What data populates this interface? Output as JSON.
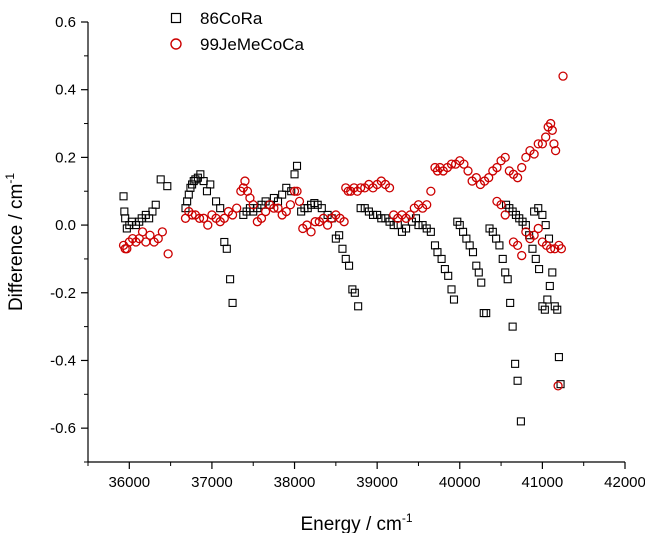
{
  "chart_data": {
    "type": "scatter",
    "title": "",
    "xlabel": "Energy / cm",
    "xlabel_sup": "-1",
    "ylabel": "Difference / cm",
    "ylabel_sup": "-1",
    "xlim": [
      35500,
      42000
    ],
    "ylim": [
      -0.7,
      0.6
    ],
    "xticks": [
      36000,
      37000,
      38000,
      39000,
      40000,
      41000,
      42000
    ],
    "yticks": [
      -0.6,
      -0.4,
      -0.2,
      0.0,
      0.2,
      0.4,
      0.6
    ],
    "xtick_labels": [
      "36000",
      "37000",
      "38000",
      "39000",
      "40000",
      "41000",
      "42000"
    ],
    "ytick_labels": [
      "-0.6",
      "-0.4",
      "-0.2",
      "0.0",
      "0.2",
      "0.4",
      "0.6"
    ],
    "grid": false,
    "legend_position": "top-left",
    "series": [
      {
        "name": "86CoRa",
        "marker": "square",
        "color": "#000000",
        "points": [
          [
            35930,
            0.085
          ],
          [
            35940,
            0.04
          ],
          [
            35950,
            0.02
          ],
          [
            35970,
            -0.01
          ],
          [
            36000,
            0.0
          ],
          [
            36030,
            0.01
          ],
          [
            36080,
            0.0
          ],
          [
            36120,
            0.01
          ],
          [
            36150,
            0.02
          ],
          [
            36200,
            0.03
          ],
          [
            36240,
            0.02
          ],
          [
            36280,
            0.04
          ],
          [
            36320,
            0.06
          ],
          [
            36380,
            0.135
          ],
          [
            36460,
            0.115
          ],
          [
            36680,
            0.05
          ],
          [
            36700,
            0.07
          ],
          [
            36720,
            0.09
          ],
          [
            36740,
            0.11
          ],
          [
            36760,
            0.12
          ],
          [
            36780,
            0.13
          ],
          [
            36800,
            0.135
          ],
          [
            36830,
            0.14
          ],
          [
            36860,
            0.15
          ],
          [
            36900,
            0.13
          ],
          [
            36940,
            0.1
          ],
          [
            36980,
            0.12
          ],
          [
            37050,
            0.07
          ],
          [
            37100,
            0.05
          ],
          [
            37150,
            -0.05
          ],
          [
            37180,
            -0.07
          ],
          [
            37220,
            -0.16
          ],
          [
            37250,
            -0.23
          ],
          [
            37380,
            0.03
          ],
          [
            37420,
            0.04
          ],
          [
            37460,
            0.05
          ],
          [
            37500,
            0.04
          ],
          [
            37550,
            0.05
          ],
          [
            37600,
            0.06
          ],
          [
            37650,
            0.07
          ],
          [
            37700,
            0.06
          ],
          [
            37750,
            0.08
          ],
          [
            37800,
            0.07
          ],
          [
            37850,
            0.09
          ],
          [
            37900,
            0.11
          ],
          [
            37960,
            0.1
          ],
          [
            38000,
            0.15
          ],
          [
            38030,
            0.175
          ],
          [
            38080,
            0.04
          ],
          [
            38120,
            0.05
          ],
          [
            38160,
            0.05
          ],
          [
            38200,
            0.06
          ],
          [
            38240,
            0.065
          ],
          [
            38280,
            0.06
          ],
          [
            38330,
            0.05
          ],
          [
            38400,
            0.03
          ],
          [
            38450,
            0.02
          ],
          [
            38500,
            -0.04
          ],
          [
            38540,
            -0.03
          ],
          [
            38580,
            -0.07
          ],
          [
            38620,
            -0.1
          ],
          [
            38660,
            -0.12
          ],
          [
            38700,
            -0.19
          ],
          [
            38730,
            -0.2
          ],
          [
            38770,
            -0.24
          ],
          [
            38800,
            0.05
          ],
          [
            38850,
            0.05
          ],
          [
            38900,
            0.04
          ],
          [
            38950,
            0.03
          ],
          [
            39000,
            0.03
          ],
          [
            39050,
            0.02
          ],
          [
            39100,
            0.02
          ],
          [
            39150,
            0.01
          ],
          [
            39200,
            0.0
          ],
          [
            39250,
            0.0
          ],
          [
            39300,
            -0.02
          ],
          [
            39350,
            -0.01
          ],
          [
            39420,
            0.01
          ],
          [
            39470,
            0.02
          ],
          [
            39500,
            0.0
          ],
          [
            39550,
            0.0
          ],
          [
            39600,
            -0.01
          ],
          [
            39650,
            -0.02
          ],
          [
            39700,
            -0.06
          ],
          [
            39730,
            -0.08
          ],
          [
            39780,
            -0.1
          ],
          [
            39820,
            -0.13
          ],
          [
            39860,
            -0.15
          ],
          [
            39900,
            -0.19
          ],
          [
            39930,
            -0.22
          ],
          [
            39970,
            0.01
          ],
          [
            40000,
            0.0
          ],
          [
            40040,
            -0.02
          ],
          [
            40080,
            -0.04
          ],
          [
            40120,
            -0.06
          ],
          [
            40160,
            -0.08
          ],
          [
            40200,
            -0.12
          ],
          [
            40230,
            -0.14
          ],
          [
            40260,
            -0.17
          ],
          [
            40290,
            -0.26
          ],
          [
            40320,
            -0.26
          ],
          [
            40360,
            -0.01
          ],
          [
            40400,
            -0.02
          ],
          [
            40440,
            -0.04
          ],
          [
            40480,
            -0.06
          ],
          [
            40520,
            -0.1
          ],
          [
            40550,
            -0.14
          ],
          [
            40580,
            -0.16
          ],
          [
            40610,
            -0.23
          ],
          [
            40640,
            -0.3
          ],
          [
            40670,
            -0.41
          ],
          [
            40700,
            -0.46
          ],
          [
            40740,
            -0.58
          ],
          [
            40560,
            0.06
          ],
          [
            40600,
            0.05
          ],
          [
            40640,
            0.04
          ],
          [
            40680,
            0.03
          ],
          [
            40720,
            0.02
          ],
          [
            40760,
            0.01
          ],
          [
            40800,
            0.0
          ],
          [
            40840,
            -0.03
          ],
          [
            40880,
            -0.07
          ],
          [
            40920,
            -0.1
          ],
          [
            40960,
            -0.13
          ],
          [
            41000,
            -0.24
          ],
          [
            41030,
            -0.25
          ],
          [
            41060,
            -0.22
          ],
          [
            41090,
            -0.18
          ],
          [
            41120,
            -0.14
          ],
          [
            41150,
            -0.24
          ],
          [
            41180,
            -0.25
          ],
          [
            41200,
            -0.39
          ],
          [
            41220,
            -0.47
          ],
          [
            40900,
            0.04
          ],
          [
            40950,
            0.05
          ],
          [
            41000,
            0.03
          ],
          [
            41040,
            0.0
          ],
          [
            41080,
            -0.04
          ]
        ]
      },
      {
        "name": "99JeMeCoCa",
        "marker": "circle",
        "color": "#cc0000",
        "points": [
          [
            35930,
            -0.06
          ],
          [
            35950,
            -0.07
          ],
          [
            35970,
            -0.07
          ],
          [
            36000,
            -0.05
          ],
          [
            36040,
            -0.04
          ],
          [
            36080,
            -0.05
          ],
          [
            36120,
            -0.04
          ],
          [
            36160,
            -0.02
          ],
          [
            36200,
            -0.05
          ],
          [
            36250,
            -0.03
          ],
          [
            36300,
            -0.05
          ],
          [
            36350,
            -0.04
          ],
          [
            36400,
            -0.02
          ],
          [
            36470,
            -0.085
          ],
          [
            36680,
            0.02
          ],
          [
            36720,
            0.04
          ],
          [
            36760,
            0.03
          ],
          [
            36800,
            0.03
          ],
          [
            36850,
            0.02
          ],
          [
            36900,
            0.02
          ],
          [
            36950,
            0.0
          ],
          [
            37000,
            0.03
          ],
          [
            37050,
            0.02
          ],
          [
            37100,
            0.01
          ],
          [
            37150,
            0.02
          ],
          [
            37200,
            0.04
          ],
          [
            37250,
            0.03
          ],
          [
            37300,
            0.05
          ],
          [
            37350,
            0.1
          ],
          [
            37380,
            0.11
          ],
          [
            37400,
            0.13
          ],
          [
            37430,
            0.1
          ],
          [
            37460,
            0.08
          ],
          [
            37500,
            0.06
          ],
          [
            37550,
            0.01
          ],
          [
            37600,
            0.02
          ],
          [
            37650,
            0.04
          ],
          [
            37700,
            0.06
          ],
          [
            37750,
            0.05
          ],
          [
            37800,
            0.05
          ],
          [
            37850,
            0.03
          ],
          [
            37900,
            0.04
          ],
          [
            37950,
            0.06
          ],
          [
            38000,
            0.1
          ],
          [
            38030,
            0.1
          ],
          [
            38060,
            0.07
          ],
          [
            38100,
            -0.01
          ],
          [
            38150,
            0.0
          ],
          [
            38200,
            -0.02
          ],
          [
            38250,
            0.01
          ],
          [
            38300,
            0.01
          ],
          [
            38350,
            0.02
          ],
          [
            38400,
            0.0
          ],
          [
            38450,
            0.02
          ],
          [
            38500,
            0.03
          ],
          [
            38550,
            0.02
          ],
          [
            38600,
            0.01
          ],
          [
            38620,
            0.11
          ],
          [
            38650,
            0.1
          ],
          [
            38680,
            0.1
          ],
          [
            38720,
            0.11
          ],
          [
            38760,
            0.1
          ],
          [
            38800,
            0.11
          ],
          [
            38850,
            0.11
          ],
          [
            38900,
            0.12
          ],
          [
            38950,
            0.11
          ],
          [
            39000,
            0.12
          ],
          [
            39050,
            0.13
          ],
          [
            39100,
            0.12
          ],
          [
            39150,
            0.11
          ],
          [
            39200,
            0.03
          ],
          [
            39250,
            0.02
          ],
          [
            39300,
            0.03
          ],
          [
            39350,
            0.02
          ],
          [
            39400,
            0.03
          ],
          [
            39450,
            0.05
          ],
          [
            39500,
            0.06
          ],
          [
            39550,
            0.05
          ],
          [
            39600,
            0.06
          ],
          [
            39650,
            0.1
          ],
          [
            39700,
            0.17
          ],
          [
            39730,
            0.16
          ],
          [
            39760,
            0.17
          ],
          [
            39800,
            0.16
          ],
          [
            39850,
            0.17
          ],
          [
            39900,
            0.18
          ],
          [
            39950,
            0.18
          ],
          [
            40000,
            0.19
          ],
          [
            40050,
            0.18
          ],
          [
            40100,
            0.16
          ],
          [
            40150,
            0.13
          ],
          [
            40200,
            0.14
          ],
          [
            40250,
            0.12
          ],
          [
            40300,
            0.13
          ],
          [
            40350,
            0.14
          ],
          [
            40400,
            0.16
          ],
          [
            40450,
            0.17
          ],
          [
            40500,
            0.19
          ],
          [
            40550,
            0.2
          ],
          [
            40600,
            0.16
          ],
          [
            40650,
            0.15
          ],
          [
            40700,
            0.14
          ],
          [
            40750,
            0.17
          ],
          [
            40800,
            0.2
          ],
          [
            40850,
            0.22
          ],
          [
            40900,
            0.21
          ],
          [
            40950,
            0.24
          ],
          [
            41000,
            0.24
          ],
          [
            41040,
            0.26
          ],
          [
            41070,
            0.29
          ],
          [
            41100,
            0.3
          ],
          [
            41120,
            0.28
          ],
          [
            41140,
            0.24
          ],
          [
            41160,
            0.22
          ],
          [
            41250,
            0.44
          ],
          [
            40650,
            -0.05
          ],
          [
            40700,
            -0.06
          ],
          [
            40750,
            -0.09
          ],
          [
            40800,
            -0.02
          ],
          [
            40850,
            -0.04
          ],
          [
            40900,
            -0.03
          ],
          [
            40950,
            -0.01
          ],
          [
            41000,
            -0.05
          ],
          [
            41050,
            -0.06
          ],
          [
            41100,
            -0.07
          ],
          [
            41150,
            -0.07
          ],
          [
            41200,
            -0.06
          ],
          [
            41230,
            -0.07
          ],
          [
            41190,
            -0.475
          ],
          [
            40450,
            0.07
          ],
          [
            40500,
            0.06
          ],
          [
            40550,
            0.03
          ]
        ]
      }
    ]
  }
}
